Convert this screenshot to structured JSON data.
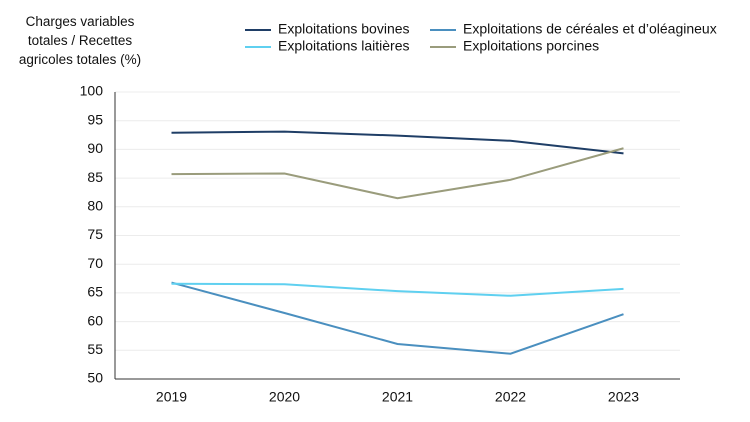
{
  "chart_data": {
    "type": "line",
    "y_label": "Charges variables totales / Recettes agricoles totales (%)",
    "categories": [
      "2019",
      "2020",
      "2021",
      "2022",
      "2023"
    ],
    "series": [
      {
        "name": "Exploitations bovines",
        "color": "#1f3e66",
        "values": [
          92.9,
          93.1,
          92.4,
          91.5,
          89.3
        ]
      },
      {
        "name": "Exploitations de céréales et d’oléagineux",
        "color": "#4a8fbf",
        "values": [
          66.8,
          61.5,
          56.1,
          54.4,
          61.3
        ]
      },
      {
        "name": "Exploitations laitières",
        "color": "#5fd0f0",
        "values": [
          66.6,
          66.5,
          65.3,
          64.5,
          65.7
        ]
      },
      {
        "name": "Exploitations porcines",
        "color": "#9a9c7c",
        "values": [
          85.7,
          85.8,
          81.5,
          84.7,
          90.2
        ]
      }
    ],
    "ylim": [
      50,
      100
    ],
    "yticks": [
      50,
      55,
      60,
      65,
      70,
      75,
      80,
      85,
      90,
      95,
      100
    ],
    "grid": true
  }
}
